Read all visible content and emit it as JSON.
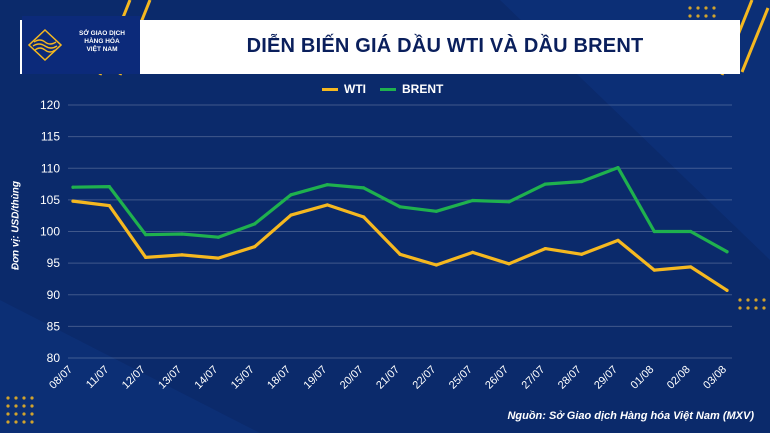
{
  "header": {
    "logo_lines": [
      "SỞ GIAO DỊCH",
      "HÀNG HÓA",
      "VIỆT NAM"
    ],
    "title": "DIỄN BIẾN GIÁ DẦU WTI VÀ DẦU BRENT"
  },
  "unit_label": "Đơn vị: USD/thùng",
  "source": "Nguồn: Sở Giao dịch Hàng hóa Việt Nam (MXV)",
  "colors": {
    "wti": "#f5b820",
    "brent": "#1fb14e",
    "background": "#0b2a6b"
  },
  "chart_data": {
    "type": "line",
    "title": "DIỄN BIẾN GIÁ DẦU WTI VÀ DẦU BRENT",
    "xlabel": "",
    "ylabel": "Đơn vị: USD/thùng",
    "ylim": [
      80,
      120
    ],
    "yticks": [
      80,
      85,
      90,
      95,
      100,
      105,
      110,
      115,
      120
    ],
    "grid": true,
    "legend_position": "top-center",
    "categories": [
      "08/07",
      "11/07",
      "12/07",
      "13/07",
      "14/07",
      "15/07",
      "18/07",
      "19/07",
      "20/07",
      "21/07",
      "22/07",
      "25/07",
      "26/07",
      "27/07",
      "28/07",
      "29/07",
      "01/08",
      "02/08",
      "03/08"
    ],
    "series": [
      {
        "name": "WTI",
        "values": [
          104.8,
          104.1,
          95.9,
          96.3,
          95.8,
          97.6,
          102.6,
          104.2,
          102.3,
          96.4,
          94.7,
          96.7,
          94.9,
          97.3,
          96.4,
          98.6,
          93.9,
          94.4,
          90.7
        ]
      },
      {
        "name": "BRENT",
        "values": [
          107.0,
          107.1,
          99.5,
          99.6,
          99.1,
          101.2,
          105.8,
          107.4,
          106.9,
          103.9,
          103.2,
          104.9,
          104.7,
          107.5,
          107.9,
          110.1,
          100.0,
          100.0,
          96.8
        ]
      }
    ]
  }
}
